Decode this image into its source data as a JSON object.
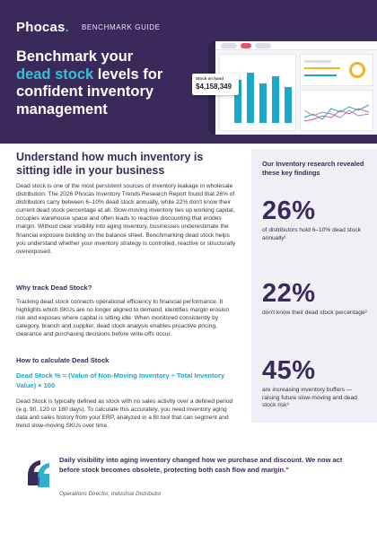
{
  "header": {
    "logo": "Phocas",
    "logo_dot": ".",
    "subtitle": "BENCHMARK GUIDE",
    "title_line1": "Benchmark your",
    "title_accent": "dead stock",
    "title_line2_rest": " levels for",
    "title_line3": "confident inventory",
    "title_line4": "management"
  },
  "dashboard_mock": {
    "stock_card_label": "Stock on hand",
    "stock_card_value": "$4,158,349",
    "colors": {
      "bars": "#1aa7c9",
      "ring": "#f2b51a",
      "nav": "#2d2346"
    }
  },
  "main": {
    "section_title": "Understand how much inventory is sitting idle in your business",
    "intro": "Dead stock is one of the most persistent sources of inventory leakage in wholesale distribution. The 2026 Phocas Inventory Trends Research Report found that 26% of distributors carry between 6–10% dead stock annually, while 22% don't know their current dead stock percentage at all. Slow-moving inventory ties up working capital, occupies warehouse space and often leads to reactive discounting that erodes margin. Without clear visibility into aging inventory, businesses underestimate the financial exposure building on the balance sheet. Benchmarking dead stock helps you understand whether your inventory strategy is controlled, reactive or structurally overexposed.",
    "why_heading": "Why track Dead Stock?",
    "why_body": "Tracking dead stock connects operational efficiency to financial performance. It highlights which SKUs are no longer aligned to demand, identifies margin erosion risk and exposes where capital is sitting idle. When monitored consistently by category, branch and supplier, dead stock analysis enables proactive pricing, clearance and purchasing decisions before write-offs occur.",
    "how_heading": "How to calculate Dead Stock",
    "formula": "Dead Stock % = (Value of Non-Moving Inventory ÷ Total Inventory Value) × 100",
    "how_body": "Dead Stock is typically defined as stock with no sales activity over a defined period (e.g. 90, 120 or 180 days). To calculate this accurately, you need inventory aging data and sales history from your ERP, analyzed in a BI tool that can segment and trend slow-moving SKUs over time."
  },
  "sidebar": {
    "title": "Our Inventory research revealed these key findings",
    "stats": [
      {
        "value": "26%",
        "desc": "of distributors hold 6–10% dead stock annually¹"
      },
      {
        "value": "22%",
        "desc": "don't know their dead stock percentage²"
      },
      {
        "value": "45%",
        "desc": "are increasing inventory buffers — raising future slow-moving and dead stock risk³"
      }
    ]
  },
  "quote": {
    "text": "Daily visibility into aging inventory changed how we purchase and discount. We now act before stock becomes obsolete, protecting both cash flow and margin.”",
    "attribution": "Operations Director, Industrial Distributor"
  },
  "colors": {
    "brand_purple": "#3a2a5c",
    "accent_teal": "#1aa7c9",
    "sidebar_bg": "#f0eff5"
  }
}
